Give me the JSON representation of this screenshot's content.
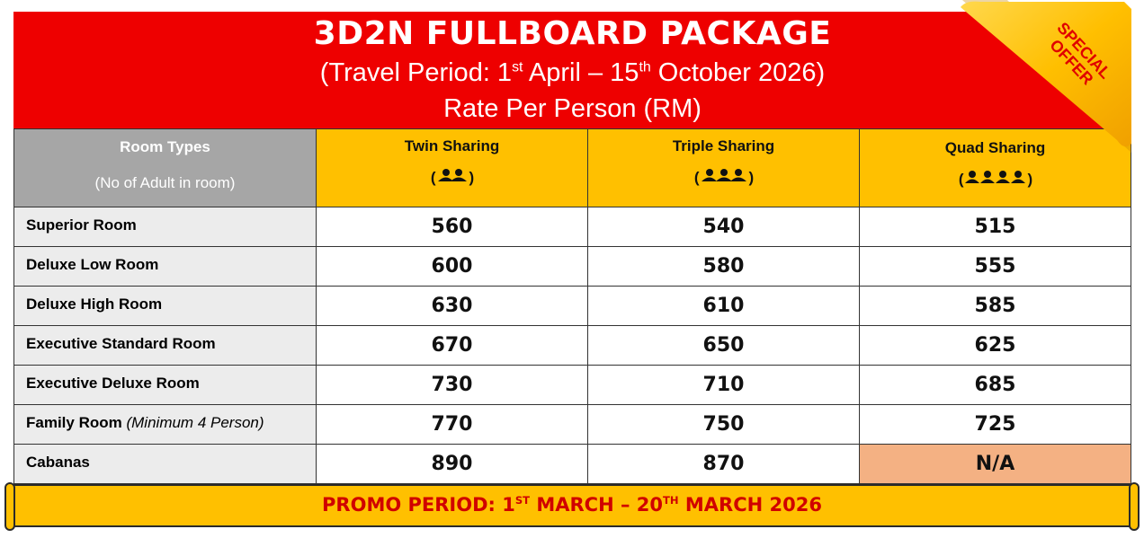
{
  "header": {
    "title": "3D2N FULLBOARD PACKAGE",
    "period_prefix": "(Travel Period: 1",
    "period_sup1": "st",
    "period_mid": " April – 15",
    "period_sup2": "th",
    "period_suffix": " October 2026)",
    "rate_note": "Rate Per Person (RM)"
  },
  "ribbon": {
    "line1": "SPECIAL",
    "line2": "OFFER"
  },
  "columns": {
    "room_types": "Room Types",
    "room_types_sub": "(No of Adult in room)",
    "twin": "Twin Sharing",
    "twin_icon": "(👥)",
    "triple": "Triple Sharing",
    "triple_icon": "(👥👤)",
    "quad": "Quad Sharing",
    "quad_icon": "(👥👥)"
  },
  "rows": [
    {
      "name": "Superior Room",
      "note": "",
      "twin": "560",
      "triple": "540",
      "quad": "515"
    },
    {
      "name": "Deluxe Low Room",
      "note": "",
      "twin": "600",
      "triple": "580",
      "quad": "555"
    },
    {
      "name": "Deluxe High Room",
      "note": "",
      "twin": "630",
      "triple": "610",
      "quad": "585"
    },
    {
      "name": "Executive Standard Room",
      "note": "",
      "twin": "670",
      "triple": "650",
      "quad": "625"
    },
    {
      "name": "Executive Deluxe Room",
      "note": "",
      "twin": "730",
      "triple": "710",
      "quad": "685"
    },
    {
      "name": "Family Room",
      "note": "(Minimum 4 Person)",
      "twin": "770",
      "triple": "750",
      "quad": "725"
    },
    {
      "name": "Cabanas",
      "note": "",
      "twin": "890",
      "triple": "870",
      "quad": "N/A"
    }
  ],
  "promo": {
    "prefix": "PROMO PERIOD: 1",
    "sup1": "ST",
    "mid": " MARCH – 20",
    "sup2": "TH",
    "suffix": " MARCH 2026"
  },
  "colors": {
    "banner": "#ee0000",
    "header_gold": "#ffc000",
    "room_header": "#a6a6a6",
    "na_cell": "#f4b183"
  }
}
